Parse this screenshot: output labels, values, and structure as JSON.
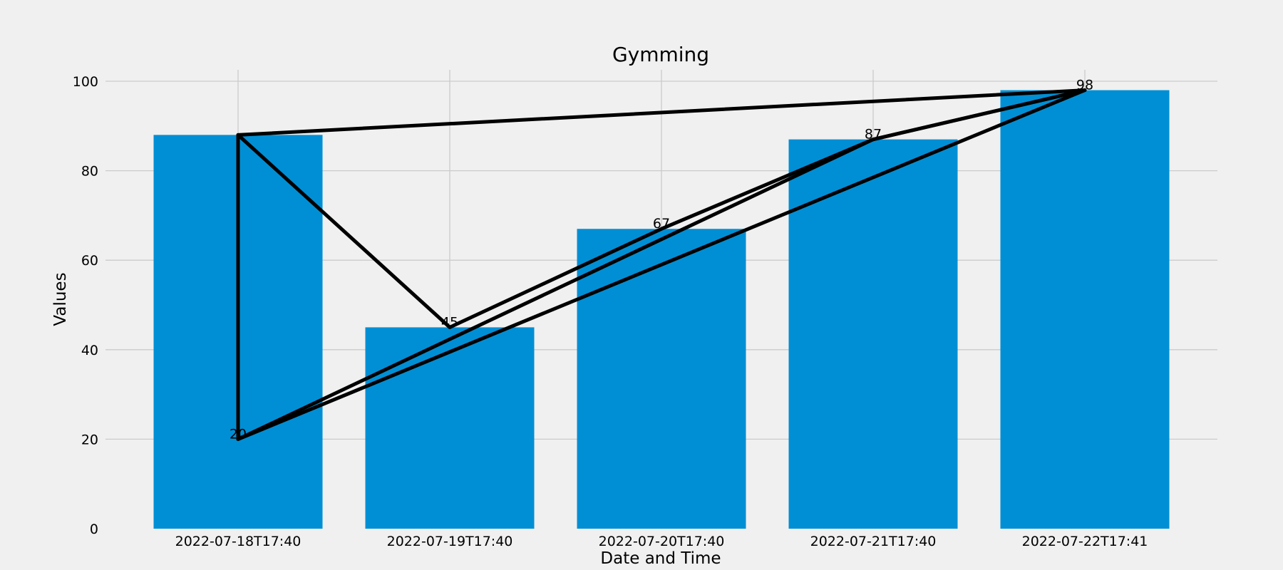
{
  "chart_data": {
    "type": "bar",
    "title": "Gymming",
    "xlabel": "Date and Time",
    "ylabel": "Values",
    "categories": [
      "2022-07-18T17:40",
      "2022-07-19T17:40",
      "2022-07-20T17:40",
      "2022-07-21T17:40",
      "2022-07-22T17:41"
    ],
    "values": [
      88,
      45,
      67,
      87,
      98
    ],
    "ylim": [
      0,
      100
    ],
    "yticks": [
      0,
      20,
      40,
      60,
      80,
      100
    ],
    "grid": true,
    "bar_color": "#008fd5",
    "background": "#f0f0f0",
    "line_overlay": {
      "color": "#000000",
      "points": [
        {
          "x": "2022-07-18T17:40",
          "y": 88
        },
        {
          "x": "2022-07-18T17:40",
          "y": 20
        },
        {
          "x": "2022-07-22T17:41",
          "y": 98
        },
        {
          "x": "2022-07-18T17:40",
          "y": 88
        },
        {
          "x": "2022-07-19T17:40",
          "y": 45
        },
        {
          "x": "2022-07-20T17:40",
          "y": 67
        },
        {
          "x": "2022-07-21T17:40",
          "y": 87
        },
        {
          "x": "2022-07-22T17:41",
          "y": 98
        },
        {
          "x": "2022-07-21T17:40",
          "y": 87
        },
        {
          "x": "2022-07-18T17:40",
          "y": 20
        }
      ]
    },
    "data_labels": [
      {
        "x": "2022-07-18T17:40",
        "y": 20,
        "text": "20"
      },
      {
        "x": "2022-07-19T17:40",
        "y": 45,
        "text": "45"
      },
      {
        "x": "2022-07-20T17:40",
        "y": 67,
        "text": "67"
      },
      {
        "x": "2022-07-21T17:40",
        "y": 87,
        "text": "87"
      },
      {
        "x": "2022-07-22T17:41",
        "y": 98,
        "text": "98"
      }
    ]
  }
}
